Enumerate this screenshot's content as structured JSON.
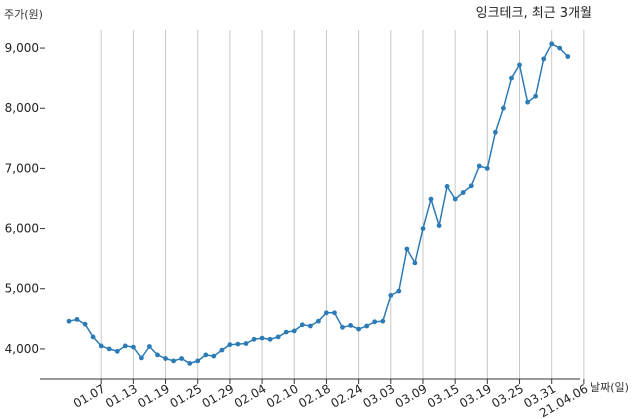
{
  "chart_data": {
    "type": "line",
    "title": "잉크테크, 최근 3개월",
    "ylabel": "주가(원)",
    "xlabel": "날짜(일)",
    "ylim": [
      3500,
      9300
    ],
    "yticks": [
      4000,
      5000,
      6000,
      7000,
      8000,
      9000
    ],
    "ytick_labels": [
      "4,000",
      "5,000",
      "6,000",
      "7,000",
      "8,000",
      "9,000"
    ],
    "grid": "vertical",
    "line_color": "#2c7bb6",
    "xtick_labels": [
      "01.07",
      "01.13",
      "01.19",
      "01.25",
      "01.29",
      "02.04",
      "02.10",
      "02.18",
      "02.24",
      "03.03",
      "03.09",
      "03.15",
      "03.19",
      "03.25",
      "03.31",
      "21.04.06"
    ],
    "xtick_index": [
      4,
      8,
      12,
      16,
      20,
      24,
      28,
      32,
      36,
      40,
      44,
      48,
      52,
      56,
      60,
      64
    ],
    "series": [
      {
        "values": [
          4460,
          4490,
          4410,
          4200,
          4050,
          4000,
          3960,
          4050,
          4030,
          3850,
          4040,
          3900,
          3840,
          3800,
          3840,
          3760,
          3800,
          3900,
          3880,
          3980,
          4070,
          4080,
          4090,
          4160,
          4180,
          4160,
          4200,
          4280,
          4300,
          4400,
          4380,
          4460,
          4600,
          4600,
          4360,
          4390,
          4330,
          4380,
          4450,
          4460,
          4890,
          4960,
          5660,
          5430,
          6000,
          6490,
          6050,
          6700,
          6490,
          6600,
          6710,
          7040,
          7000,
          7600,
          8000,
          8500,
          8720,
          8100,
          8200,
          8820,
          9070,
          9000,
          8860
        ]
      }
    ]
  }
}
